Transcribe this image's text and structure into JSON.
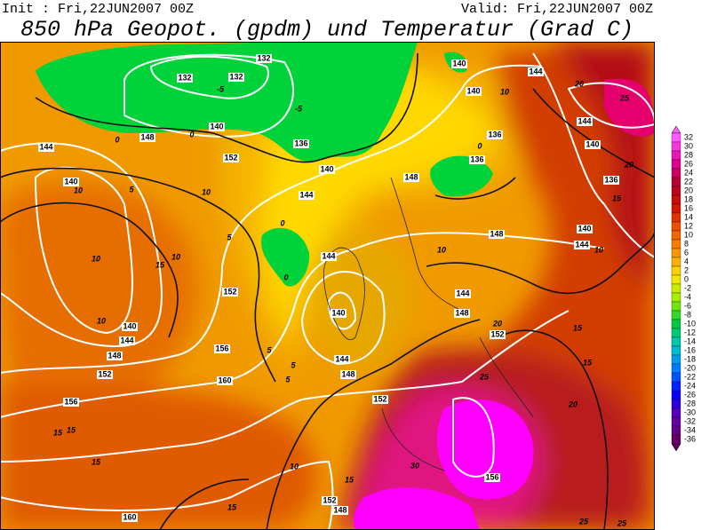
{
  "header": {
    "init": "Init : Fri,22JUN2007 00Z",
    "valid": "Valid: Fri,22JUN2007 00Z",
    "title": "850 hPa Geopot. (gpdm) und Temperatur (Grad C)"
  },
  "colorbar": {
    "labels": [
      32,
      30,
      28,
      26,
      24,
      22,
      20,
      18,
      16,
      14,
      12,
      10,
      8,
      6,
      4,
      2,
      0,
      -2,
      -4,
      -6,
      -8,
      -10,
      -12,
      -14,
      -16,
      -18,
      -20,
      -22,
      -24,
      -26,
      -28,
      -30,
      -32,
      -34,
      -36
    ]
  },
  "map": {
    "labels": [
      "132",
      "132",
      "132",
      "-5",
      "140",
      "-5",
      "148",
      "0",
      "0",
      "136",
      "152",
      "140",
      "144",
      "140",
      "10",
      "5",
      "10",
      "144",
      "0",
      "148",
      "136",
      "0",
      "136",
      "140",
      "10",
      "144",
      "140",
      "144",
      "140",
      "136",
      "20",
      "25",
      "20",
      "15",
      "140",
      "144",
      "10",
      "148",
      "10",
      "144",
      "0",
      "5",
      "152",
      "10",
      "15",
      "10",
      "10",
      "140",
      "144",
      "148",
      "152",
      "156",
      "156",
      "160",
      "140",
      "144",
      "148",
      "152",
      "5",
      "5",
      "5",
      "144",
      "148",
      "152",
      "20",
      "15",
      "15",
      "25",
      "20",
      "15",
      "15",
      "15",
      "160",
      "15",
      "10",
      "15",
      "152",
      "148",
      "30",
      "156",
      "25",
      "25"
    ]
  }
}
